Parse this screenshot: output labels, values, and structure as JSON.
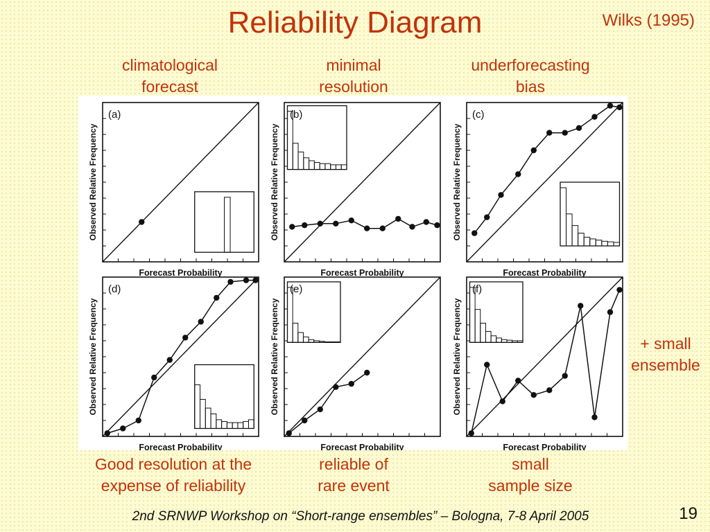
{
  "title": "Reliability Diagram",
  "reference": "Wilks (1995)",
  "top_captions": [
    "climatological\nforecast",
    "minimal\nresolution",
    "underforecasting\nbias"
  ],
  "bottom_captions": [
    "Good resolution at the\nexpense of reliability",
    "reliable  of\nrare event",
    "small\nsample size"
  ],
  "side_caption": "+ small\nensemble",
  "footer": "2nd SRNWP Workshop on “Short-range ensembles” – Bologna, 7-8 April 2005",
  "page_number": "19",
  "colors": {
    "accent": "#c0330b",
    "background": "#fdfbd2",
    "ink": "#111111"
  },
  "chart_data": [
    {
      "type": "line",
      "panel": "(a)",
      "xlabel": "Forecast Probability",
      "ylabel": "Observed Relative Frequency",
      "xlim": [
        0,
        1
      ],
      "ylim": [
        0,
        1
      ],
      "diagonal": true,
      "series": [
        {
          "x": [
            0.25
          ],
          "y": [
            0.25
          ]
        }
      ],
      "inset": {
        "values": [
          0,
          0,
          0,
          0,
          0,
          1.0,
          0,
          0,
          0,
          0
        ]
      }
    },
    {
      "type": "line",
      "panel": "(b)",
      "xlabel": "Forecast Probability",
      "ylabel": "Observed Relative Frequency",
      "xlim": [
        0,
        1
      ],
      "ylim": [
        0,
        1
      ],
      "diagonal": true,
      "series": [
        {
          "x": [
            0.05,
            0.13,
            0.23,
            0.33,
            0.43,
            0.53,
            0.63,
            0.73,
            0.82,
            0.91,
            0.98
          ],
          "y": [
            0.22,
            0.23,
            0.24,
            0.24,
            0.26,
            0.21,
            0.21,
            0.27,
            0.22,
            0.25,
            0.23
          ]
        }
      ],
      "inset": {
        "values": [
          1.0,
          0.45,
          0.3,
          0.2,
          0.15,
          0.12,
          0.1,
          0.1,
          0.08,
          0.08,
          0.08
        ]
      }
    },
    {
      "type": "line",
      "panel": "(c)",
      "xlabel": "Forecast Probability",
      "ylabel": "Observed Relative Frequency",
      "xlim": [
        0,
        1
      ],
      "ylim": [
        0,
        1
      ],
      "diagonal": true,
      "series": [
        {
          "x": [
            0.05,
            0.13,
            0.22,
            0.33,
            0.43,
            0.53,
            0.63,
            0.72,
            0.82,
            0.92,
            0.98
          ],
          "y": [
            0.18,
            0.28,
            0.42,
            0.55,
            0.7,
            0.81,
            0.81,
            0.84,
            0.91,
            0.98,
            0.97
          ]
        }
      ],
      "inset": {
        "values": [
          1.0,
          0.55,
          0.35,
          0.22,
          0.15,
          0.12,
          0.1,
          0.08,
          0.07,
          0.06
        ]
      }
    },
    {
      "type": "line",
      "panel": "(d)",
      "xlabel": "Forecast Probability",
      "ylabel": "Observed Relative Frequency",
      "xlim": [
        0,
        1
      ],
      "ylim": [
        0,
        1
      ],
      "diagonal": true,
      "series": [
        {
          "x": [
            0.03,
            0.13,
            0.23,
            0.33,
            0.43,
            0.53,
            0.63,
            0.73,
            0.82,
            0.92,
            0.98
          ],
          "y": [
            0.02,
            0.05,
            0.1,
            0.37,
            0.48,
            0.62,
            0.72,
            0.87,
            0.97,
            0.98,
            0.98
          ]
        }
      ],
      "inset": {
        "values": [
          0.75,
          0.5,
          0.35,
          0.25,
          0.15,
          0.12,
          0.1,
          0.1,
          0.1,
          0.12,
          0.15
        ]
      }
    },
    {
      "type": "line",
      "panel": "(e)",
      "xlabel": "Forecast Probability",
      "ylabel": "Observed Relative Frequency",
      "xlim": [
        0,
        1
      ],
      "ylim": [
        0,
        1
      ],
      "diagonal": true,
      "series": [
        {
          "x": [
            0.03,
            0.13,
            0.23,
            0.33,
            0.43,
            0.53
          ],
          "y": [
            0.02,
            0.1,
            0.17,
            0.31,
            0.33,
            0.4
          ]
        }
      ],
      "inset": {
        "values": [
          1.0,
          0.35,
          0.18,
          0.1,
          0.05,
          0.03,
          0.02,
          0.01,
          0.01,
          0.01
        ]
      }
    },
    {
      "type": "line",
      "panel": "(f)",
      "xlabel": "Forecast Probability",
      "ylabel": "Observed Relative Frequency",
      "xlim": [
        0,
        1
      ],
      "ylim": [
        0,
        1
      ],
      "diagonal": true,
      "series": [
        {
          "x": [
            0.03,
            0.13,
            0.23,
            0.33,
            0.43,
            0.53,
            0.63,
            0.73,
            0.82,
            0.92,
            0.98
          ],
          "y": [
            0.02,
            0.45,
            0.22,
            0.35,
            0.26,
            0.29,
            0.38,
            0.82,
            0.12,
            0.78,
            0.92
          ]
        }
      ],
      "inset": {
        "values": [
          1.0,
          0.6,
          0.35,
          0.2,
          0.12,
          0.08,
          0.05,
          0.04,
          0.03,
          0.03
        ]
      }
    }
  ]
}
